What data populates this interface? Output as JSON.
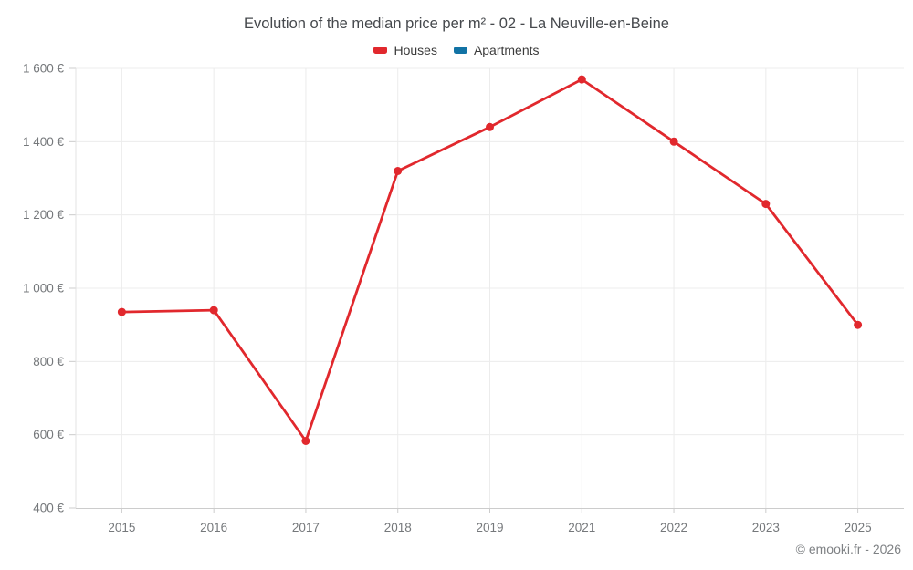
{
  "title": "Evolution of the median price per m² - 02 - La Neuville-en-Beine",
  "footer": "© emooki.fr - 2026",
  "chart_data": {
    "type": "line",
    "title": "Evolution of the median price per m² - 02 - La Neuville-en-Beine",
    "categories": [
      "2015",
      "2016",
      "2017",
      "2018",
      "2019",
      "2021",
      "2022",
      "2023",
      "2025"
    ],
    "series": [
      {
        "name": "Houses",
        "color": "#e1282d",
        "values": [
          935,
          940,
          583,
          1320,
          1440,
          1570,
          1400,
          1230,
          900
        ]
      },
      {
        "name": "Apartments",
        "color": "#1273a5",
        "values": []
      }
    ],
    "xlabel": "",
    "ylabel": "",
    "ylim": [
      400,
      1600
    ],
    "y_ticks": [
      400,
      600,
      800,
      1000,
      1200,
      1400,
      1600
    ],
    "y_tick_labels": [
      "400 €",
      "600 €",
      "800 €",
      "1 000 €",
      "1 200 €",
      "1 400 €",
      "1 600 €"
    ],
    "grid": true,
    "legend_position": "top"
  },
  "colors": {
    "houses": "#e1282d",
    "apartments": "#1273a5",
    "grid_line": "#ececec",
    "boundary_line": "#e3e3e3",
    "axis_line": "#cccccc",
    "tick_mark": "#cccccc",
    "axis_label": "#75787b",
    "title_text": "#46494d",
    "legend_text": "#3b3b3b",
    "footer_text": "#7e8184",
    "background": "#ffffff"
  }
}
